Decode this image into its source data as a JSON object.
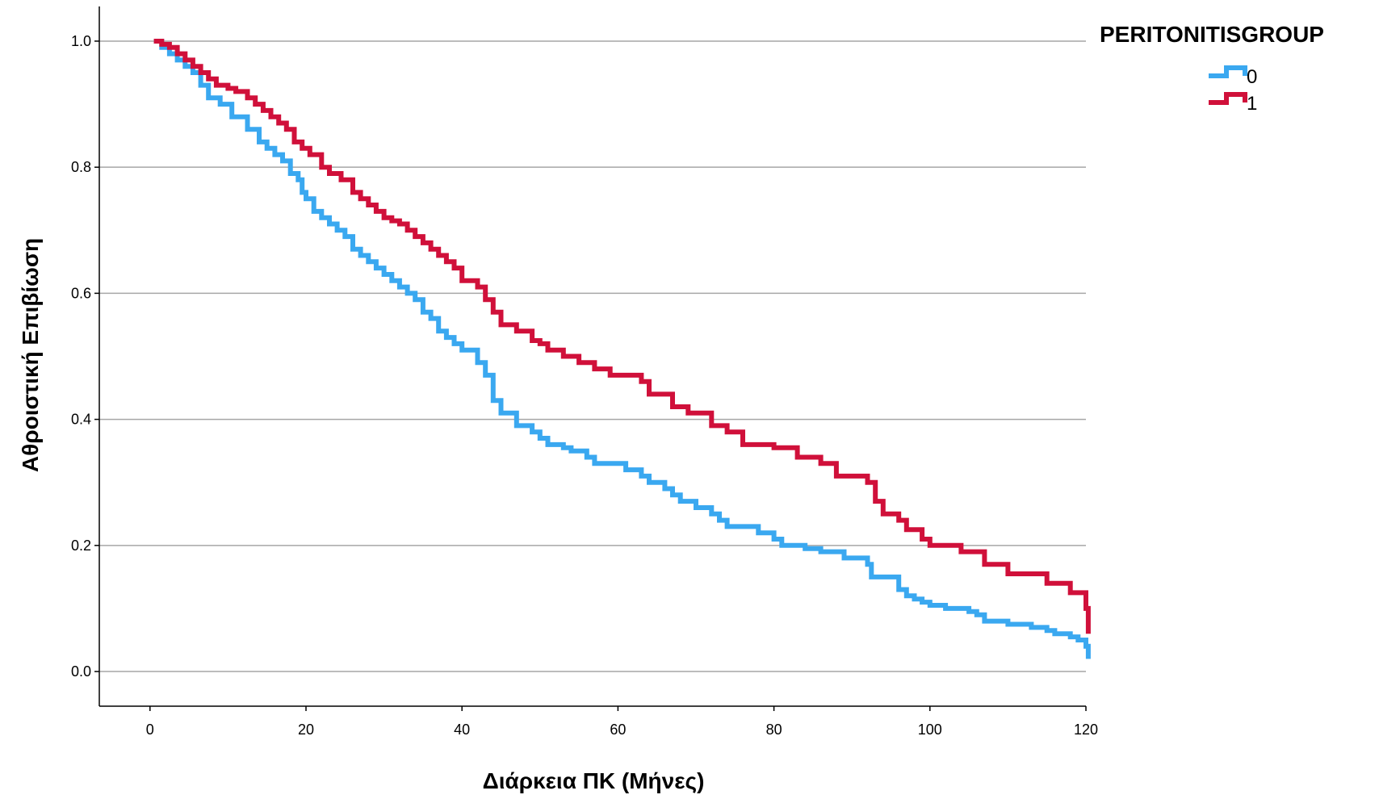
{
  "chart_data": {
    "type": "line",
    "title": "",
    "xlabel": "Διάρκεια ΠΚ (Μήνες)",
    "ylabel": "Αθροιστική Επιβίωση",
    "xlim": [
      -6.5,
      120
    ],
    "ylim": [
      -0.055,
      1.055
    ],
    "x_ticks": [
      0,
      20,
      40,
      60,
      80,
      100,
      120
    ],
    "x_tick_labels": [
      "0",
      "20",
      "40",
      "60",
      "80",
      "100",
      "120"
    ],
    "y_ticks": [
      0.0,
      0.2,
      0.4,
      0.6,
      0.8,
      1.0
    ],
    "y_tick_labels": [
      "0.0",
      "0.2",
      "0.4",
      "0.6",
      "0.8",
      "1.0"
    ],
    "grid": "horizontal",
    "step": true,
    "legend": {
      "title": "PERITONITISGROUP",
      "placement": "top-right-outside"
    },
    "series": [
      {
        "name": "0",
        "color": "#3aa8f0",
        "x": [
          0.5,
          1.5,
          2.5,
          3.5,
          4.5,
          5.5,
          6.5,
          7.5,
          9,
          10.5,
          12.5,
          14,
          15,
          16,
          17,
          18,
          19,
          19.5,
          20,
          21,
          22,
          23,
          24,
          25,
          26,
          27,
          28,
          29,
          30,
          31,
          32,
          33,
          34,
          35,
          36,
          37,
          38,
          39,
          40,
          42,
          43,
          44,
          45,
          47,
          49,
          50,
          51,
          53,
          54,
          56,
          57,
          59,
          61,
          63,
          64,
          66,
          67,
          68,
          70,
          72,
          73,
          74,
          78,
          80,
          81,
          84,
          86,
          89,
          92,
          92.5,
          96,
          97,
          98,
          99,
          100,
          102,
          105,
          106,
          107,
          110,
          113,
          115,
          116,
          118,
          119,
          120,
          120.3
        ],
        "y": [
          1.0,
          0.99,
          0.98,
          0.97,
          0.96,
          0.95,
          0.93,
          0.91,
          0.9,
          0.88,
          0.86,
          0.84,
          0.83,
          0.82,
          0.81,
          0.79,
          0.78,
          0.76,
          0.75,
          0.73,
          0.72,
          0.71,
          0.7,
          0.69,
          0.67,
          0.66,
          0.65,
          0.64,
          0.63,
          0.62,
          0.61,
          0.6,
          0.59,
          0.57,
          0.56,
          0.54,
          0.53,
          0.52,
          0.51,
          0.49,
          0.47,
          0.43,
          0.41,
          0.39,
          0.38,
          0.37,
          0.36,
          0.355,
          0.35,
          0.34,
          0.33,
          0.33,
          0.32,
          0.31,
          0.3,
          0.29,
          0.28,
          0.27,
          0.26,
          0.25,
          0.24,
          0.23,
          0.22,
          0.21,
          0.2,
          0.195,
          0.19,
          0.18,
          0.17,
          0.15,
          0.13,
          0.12,
          0.115,
          0.11,
          0.105,
          0.1,
          0.095,
          0.09,
          0.08,
          0.075,
          0.07,
          0.065,
          0.06,
          0.055,
          0.05,
          0.04,
          0.02
        ]
      },
      {
        "name": "1",
        "color": "#d0103a",
        "x": [
          0.5,
          1.5,
          2.5,
          3.5,
          4.5,
          5.5,
          6.5,
          7.5,
          8.5,
          10,
          11,
          12.5,
          13.5,
          14.5,
          15.5,
          16.5,
          17.5,
          18.5,
          19.5,
          20.5,
          22,
          23,
          24.5,
          26,
          27,
          28,
          29,
          30,
          31,
          32,
          33,
          34,
          35,
          36,
          37,
          38,
          39,
          40,
          42,
          43,
          44,
          45,
          47,
          49,
          50,
          51,
          53,
          55,
          57,
          59,
          63,
          64,
          67,
          69,
          72,
          74,
          76,
          80,
          83,
          86,
          88,
          92,
          93,
          94,
          96,
          97,
          99,
          100,
          104,
          107,
          110,
          115,
          118,
          120,
          120.3
        ],
        "y": [
          1.0,
          0.995,
          0.99,
          0.98,
          0.97,
          0.96,
          0.95,
          0.94,
          0.93,
          0.925,
          0.92,
          0.91,
          0.9,
          0.89,
          0.88,
          0.87,
          0.86,
          0.84,
          0.83,
          0.82,
          0.8,
          0.79,
          0.78,
          0.76,
          0.75,
          0.74,
          0.73,
          0.72,
          0.715,
          0.71,
          0.7,
          0.69,
          0.68,
          0.67,
          0.66,
          0.65,
          0.64,
          0.62,
          0.61,
          0.59,
          0.57,
          0.55,
          0.54,
          0.525,
          0.52,
          0.51,
          0.5,
          0.49,
          0.48,
          0.47,
          0.46,
          0.44,
          0.42,
          0.41,
          0.39,
          0.38,
          0.36,
          0.355,
          0.34,
          0.33,
          0.31,
          0.3,
          0.27,
          0.25,
          0.24,
          0.225,
          0.21,
          0.2,
          0.19,
          0.17,
          0.155,
          0.14,
          0.125,
          0.1,
          0.06
        ]
      }
    ]
  }
}
